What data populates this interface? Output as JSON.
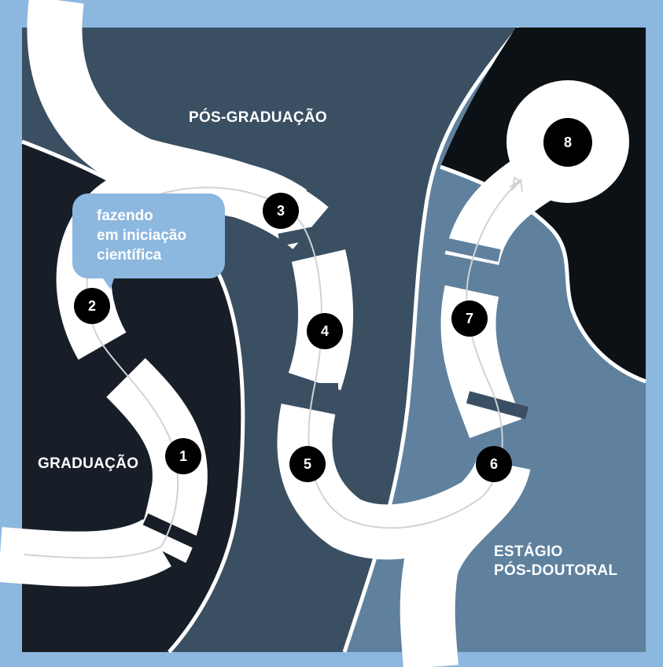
{
  "regions": {
    "graduacao": "GRADUAÇÃO",
    "pos_graduacao": "PÓS-GRADUAÇÃO",
    "estagio_line1": "ESTÁGIO",
    "estagio_line2": "PÓS-DOUTORAL"
  },
  "bubble": {
    "line1": "fazendo",
    "line2": "em iniciação",
    "line3": "científica"
  },
  "steps": [
    "1",
    "2",
    "3",
    "4",
    "5",
    "6",
    "7",
    "8"
  ],
  "colors": {
    "frame": "#8cb7df",
    "graduacao_area": "#171e27",
    "pos_graduacao_area": "#3a4f62",
    "pos_doc_area": "#5f819e",
    "dark_corner": "#0c1116",
    "road": "#ffffff",
    "road_line": "#cfd3d8",
    "step_marker": "#000000"
  }
}
